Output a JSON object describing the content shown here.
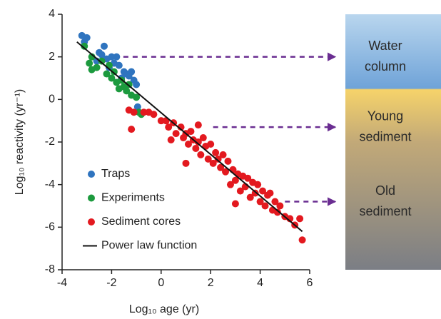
{
  "chart_data": {
    "type": "scatter",
    "xlabel": "Log₁₀ age (yr)",
    "ylabel": "Log₁₀ reactivity (yr⁻¹)",
    "xlim": [
      -4,
      6
    ],
    "xticks": [
      -4,
      -2,
      0,
      2,
      4,
      6
    ],
    "ylim": [
      -8,
      4
    ],
    "yticks": [
      -8,
      -6,
      -4,
      -2,
      0,
      2,
      4
    ],
    "legend": "lower left",
    "series": [
      {
        "name": "Traps",
        "color": "#2f74bf",
        "x": [
          -3.2,
          -3.0,
          -3.1,
          -2.5,
          -2.3,
          -2.4,
          -2.2,
          -2.0,
          -1.9,
          -2.1,
          -1.7,
          -1.5,
          -1.4,
          -1.3,
          -1.2,
          -1.1,
          -1.0,
          -2.6,
          -1.8,
          -0.95,
          -1.6
        ],
        "values": [
          3.0,
          2.9,
          2.7,
          2.2,
          2.5,
          2.1,
          1.9,
          2.0,
          1.7,
          1.5,
          1.6,
          1.3,
          1.2,
          1.1,
          1.3,
          0.9,
          0.7,
          1.8,
          2.0,
          -0.35,
          1.0
        ]
      },
      {
        "name": "Experiments",
        "color": "#1c9a3e",
        "x": [
          -3.1,
          -2.8,
          -2.9,
          -2.8,
          -2.6,
          -2.4,
          -2.2,
          -2.0,
          -1.9,
          -1.8,
          -1.6,
          -1.5,
          -1.4,
          -1.3,
          -1.2,
          -1.0,
          -0.9,
          -0.8,
          -2.1,
          -1.7
        ],
        "values": [
          2.5,
          2.0,
          1.7,
          1.4,
          1.5,
          1.8,
          1.2,
          1.0,
          1.3,
          0.8,
          0.9,
          0.6,
          0.4,
          0.7,
          0.2,
          0.1,
          -0.6,
          -0.7,
          1.6,
          0.5
        ]
      },
      {
        "name": "Sediment cores",
        "color": "#e3191f",
        "x": [
          -1.3,
          -1.1,
          -0.7,
          -0.5,
          -0.3,
          0,
          0.2,
          0.3,
          0.5,
          0.6,
          0.8,
          0.9,
          1.0,
          1.1,
          1.2,
          1.3,
          1.4,
          1.5,
          1.5,
          1.6,
          1.7,
          1.8,
          1.9,
          2.0,
          2.1,
          2.2,
          2.3,
          2.4,
          2.5,
          2.6,
          2.7,
          2.8,
          2.9,
          3.0,
          3.1,
          3.2,
          3.3,
          3.4,
          3.5,
          3.6,
          3.7,
          3.8,
          3.9,
          4.0,
          4.1,
          4.2,
          4.3,
          4.4,
          4.5,
          4.6,
          4.7,
          4.8,
          5.0,
          5.2,
          5.4,
          5.6,
          5.7,
          1.0,
          3.0,
          -1.2,
          0.4
        ],
        "values": [
          -0.5,
          -0.6,
          -0.6,
          -0.6,
          -0.7,
          -1.0,
          -1.0,
          -1.3,
          -1.1,
          -1.6,
          -1.3,
          -1.8,
          -1.6,
          -2.1,
          -1.5,
          -1.9,
          -2.3,
          -1.2,
          -2.0,
          -2.6,
          -1.8,
          -2.2,
          -2.8,
          -2.1,
          -3.0,
          -2.5,
          -2.8,
          -3.2,
          -2.6,
          -3.4,
          -2.9,
          -4.0,
          -3.3,
          -3.8,
          -3.5,
          -4.3,
          -3.6,
          -4.1,
          -3.7,
          -4.6,
          -3.9,
          -4.4,
          -4.0,
          -4.8,
          -4.3,
          -5.0,
          -4.5,
          -4.4,
          -5.2,
          -4.8,
          -5.3,
          -5.0,
          -5.5,
          -5.6,
          -5.9,
          -5.6,
          -6.6,
          -3.0,
          -4.9,
          -1.4,
          -1.9
        ]
      },
      {
        "name": "Power law function",
        "color": "#111111",
        "type": "line",
        "x": [
          -3.4,
          5.7
        ],
        "values": [
          2.7,
          -6.2
        ]
      }
    ],
    "annotations": [
      {
        "text": [
          "Water",
          "column"
        ],
        "arrow_y": 2,
        "arrow_from_x": -1.9
      },
      {
        "text": [
          "Young",
          "sediment"
        ],
        "arrow_y": -1.3,
        "arrow_from_x": 2.1
      },
      {
        "text": [
          "Old",
          "sediment"
        ],
        "arrow_y": -4.8,
        "arrow_from_x": 5.0
      }
    ]
  }
}
